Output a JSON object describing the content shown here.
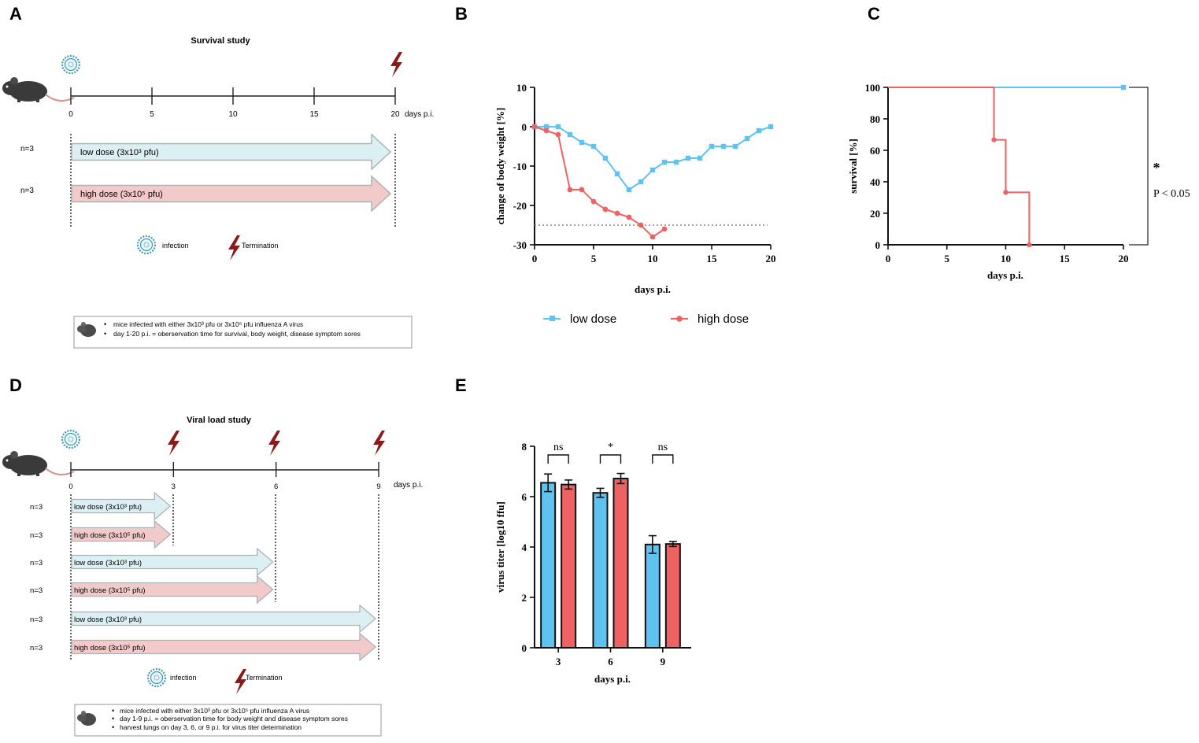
{
  "colors": {
    "blue": "#5ec3f0",
    "red": "#ef6264",
    "dark_red": "#8b1a1a",
    "arrow_blue_fill": "#dceff3",
    "arrow_red_fill": "#f3caca",
    "arrow_stroke": "#a9b3b7",
    "virus_teal": "#3b9ab0"
  },
  "panelA": {
    "letter": "A",
    "title": "Survival study",
    "ticks": [
      "0",
      "5",
      "10",
      "15",
      "20"
    ],
    "axis_unit": "days p.i.",
    "groups": [
      {
        "n": "n=3",
        "dose": "low dose (3x10³ pfu)",
        "tone": "blue"
      },
      {
        "n": "n=3",
        "dose": "high dose (3x10⁵ pfu)",
        "tone": "red"
      }
    ],
    "legend": {
      "infection": "infection",
      "termination": "Termination"
    },
    "notes": [
      "mice infected with either 3x10³ pfu or 3x10⁵ pfu influenza A virus",
      "day 1-20 p.i. =  oberservation time for survival, body weight, disease symptom sores"
    ]
  },
  "panelB": {
    "letter": "B",
    "chart_data": {
      "type": "line",
      "xlabel": "days p.i.",
      "ylabel": "change of body weight [%]",
      "xlim": [
        0,
        20
      ],
      "ylim": [
        -30,
        10
      ],
      "xticks": [
        0,
        5,
        10,
        15,
        20
      ],
      "yticks": [
        10,
        0,
        -10,
        -20,
        -30
      ],
      "threshold": -25,
      "series": [
        {
          "name": "low dose",
          "color": "#5ec3f0",
          "marker": "square",
          "x": [
            0,
            1,
            2,
            3,
            4,
            5,
            6,
            7,
            8,
            9,
            10,
            11,
            12,
            13,
            14,
            15,
            16,
            17,
            18,
            19,
            20
          ],
          "y": [
            0,
            0,
            0,
            -2,
            -4,
            -5,
            -8,
            -12,
            -16,
            -14,
            -11,
            -9,
            -9,
            -8,
            -8,
            -5,
            -5,
            -5,
            -3,
            -1,
            0
          ]
        },
        {
          "name": "high dose",
          "color": "#ef6264",
          "marker": "circle",
          "x": [
            0,
            1,
            2,
            3,
            4,
            5,
            6,
            7,
            8,
            9,
            10,
            11
          ],
          "y": [
            0,
            -1,
            -2,
            -16,
            -16,
            -19,
            -21,
            -22,
            -23,
            -25,
            -28,
            -26
          ]
        }
      ]
    }
  },
  "panelC": {
    "letter": "C",
    "chart_data": {
      "type": "line",
      "step": true,
      "xlabel": "days p.i.",
      "ylabel": "survival [%]",
      "xlim": [
        0,
        20
      ],
      "ylim": [
        0,
        100
      ],
      "xticks": [
        0,
        5,
        10,
        15,
        20
      ],
      "yticks": [
        0,
        20,
        40,
        60,
        80,
        100
      ],
      "significance": "*",
      "p_value": "P < 0.05",
      "series": [
        {
          "name": "low dose",
          "color": "#5ec3f0",
          "marker": "square",
          "x": [
            0,
            20
          ],
          "y": [
            100,
            100
          ],
          "markers_x": [
            20
          ],
          "markers_y": [
            100
          ]
        },
        {
          "name": "high dose",
          "color": "#ef6264",
          "marker": "circle",
          "x": [
            0,
            9,
            10,
            12
          ],
          "y": [
            100,
            66.7,
            33.3,
            0
          ],
          "markers_x": [
            9,
            10,
            12
          ],
          "markers_y": [
            66.7,
            33.3,
            0
          ]
        }
      ]
    }
  },
  "legendBC": {
    "low": "low dose",
    "high": "high dose"
  },
  "panelD": {
    "letter": "D",
    "title": "Viral load study",
    "ticks": [
      "0",
      "3",
      "6",
      "9"
    ],
    "axis_unit": "days p.i.",
    "groups": [
      {
        "n": "n=3",
        "dose": "low dose (3x10³ pfu)",
        "tone": "blue",
        "end": 3
      },
      {
        "n": "n=3",
        "dose": "high dose (3x10⁵ pfu)",
        "tone": "red",
        "end": 3
      },
      {
        "n": "n=3",
        "dose": "low dose (3x10³ pfu)",
        "tone": "blue",
        "end": 6
      },
      {
        "n": "n=3",
        "dose": "high dose (3x10⁵ pfu)",
        "tone": "red",
        "end": 6
      },
      {
        "n": "n=3",
        "dose": "low dose (3x10³ pfu)",
        "tone": "blue",
        "end": 9
      },
      {
        "n": "n=3",
        "dose": "high dose (3x10⁵ pfu)",
        "tone": "red",
        "end": 9
      }
    ],
    "legend": {
      "infection": "infection",
      "termination": "Termination"
    },
    "notes": [
      "mice infected with either 3x10³ pfu or 3x10⁵ pfu influenza A virus",
      "day 1-9 p.i. =  oberservation time for body weight and disease symptom sores",
      "harvest lungs on day 3, 6, or 9 p.i. for virus titer determination"
    ]
  },
  "panelE": {
    "letter": "E",
    "chart_data": {
      "type": "bar",
      "xlabel": "days p.i.",
      "ylabel": "virus titer [log10 ffu]",
      "categories": [
        "3",
        "6",
        "9"
      ],
      "ylim": [
        0,
        8
      ],
      "yticks": [
        0,
        2,
        4,
        6,
        8
      ],
      "series": [
        {
          "name": "low dose",
          "color": "#5ec3f0",
          "values": [
            6.55,
            6.15,
            4.1
          ],
          "errors": [
            0.35,
            0.18,
            0.35
          ]
        },
        {
          "name": "high dose",
          "color": "#ef6264",
          "values": [
            6.48,
            6.72,
            4.12
          ],
          "errors": [
            0.18,
            0.2,
            0.1
          ]
        }
      ],
      "significance": [
        "ns",
        "*",
        "ns"
      ]
    }
  }
}
